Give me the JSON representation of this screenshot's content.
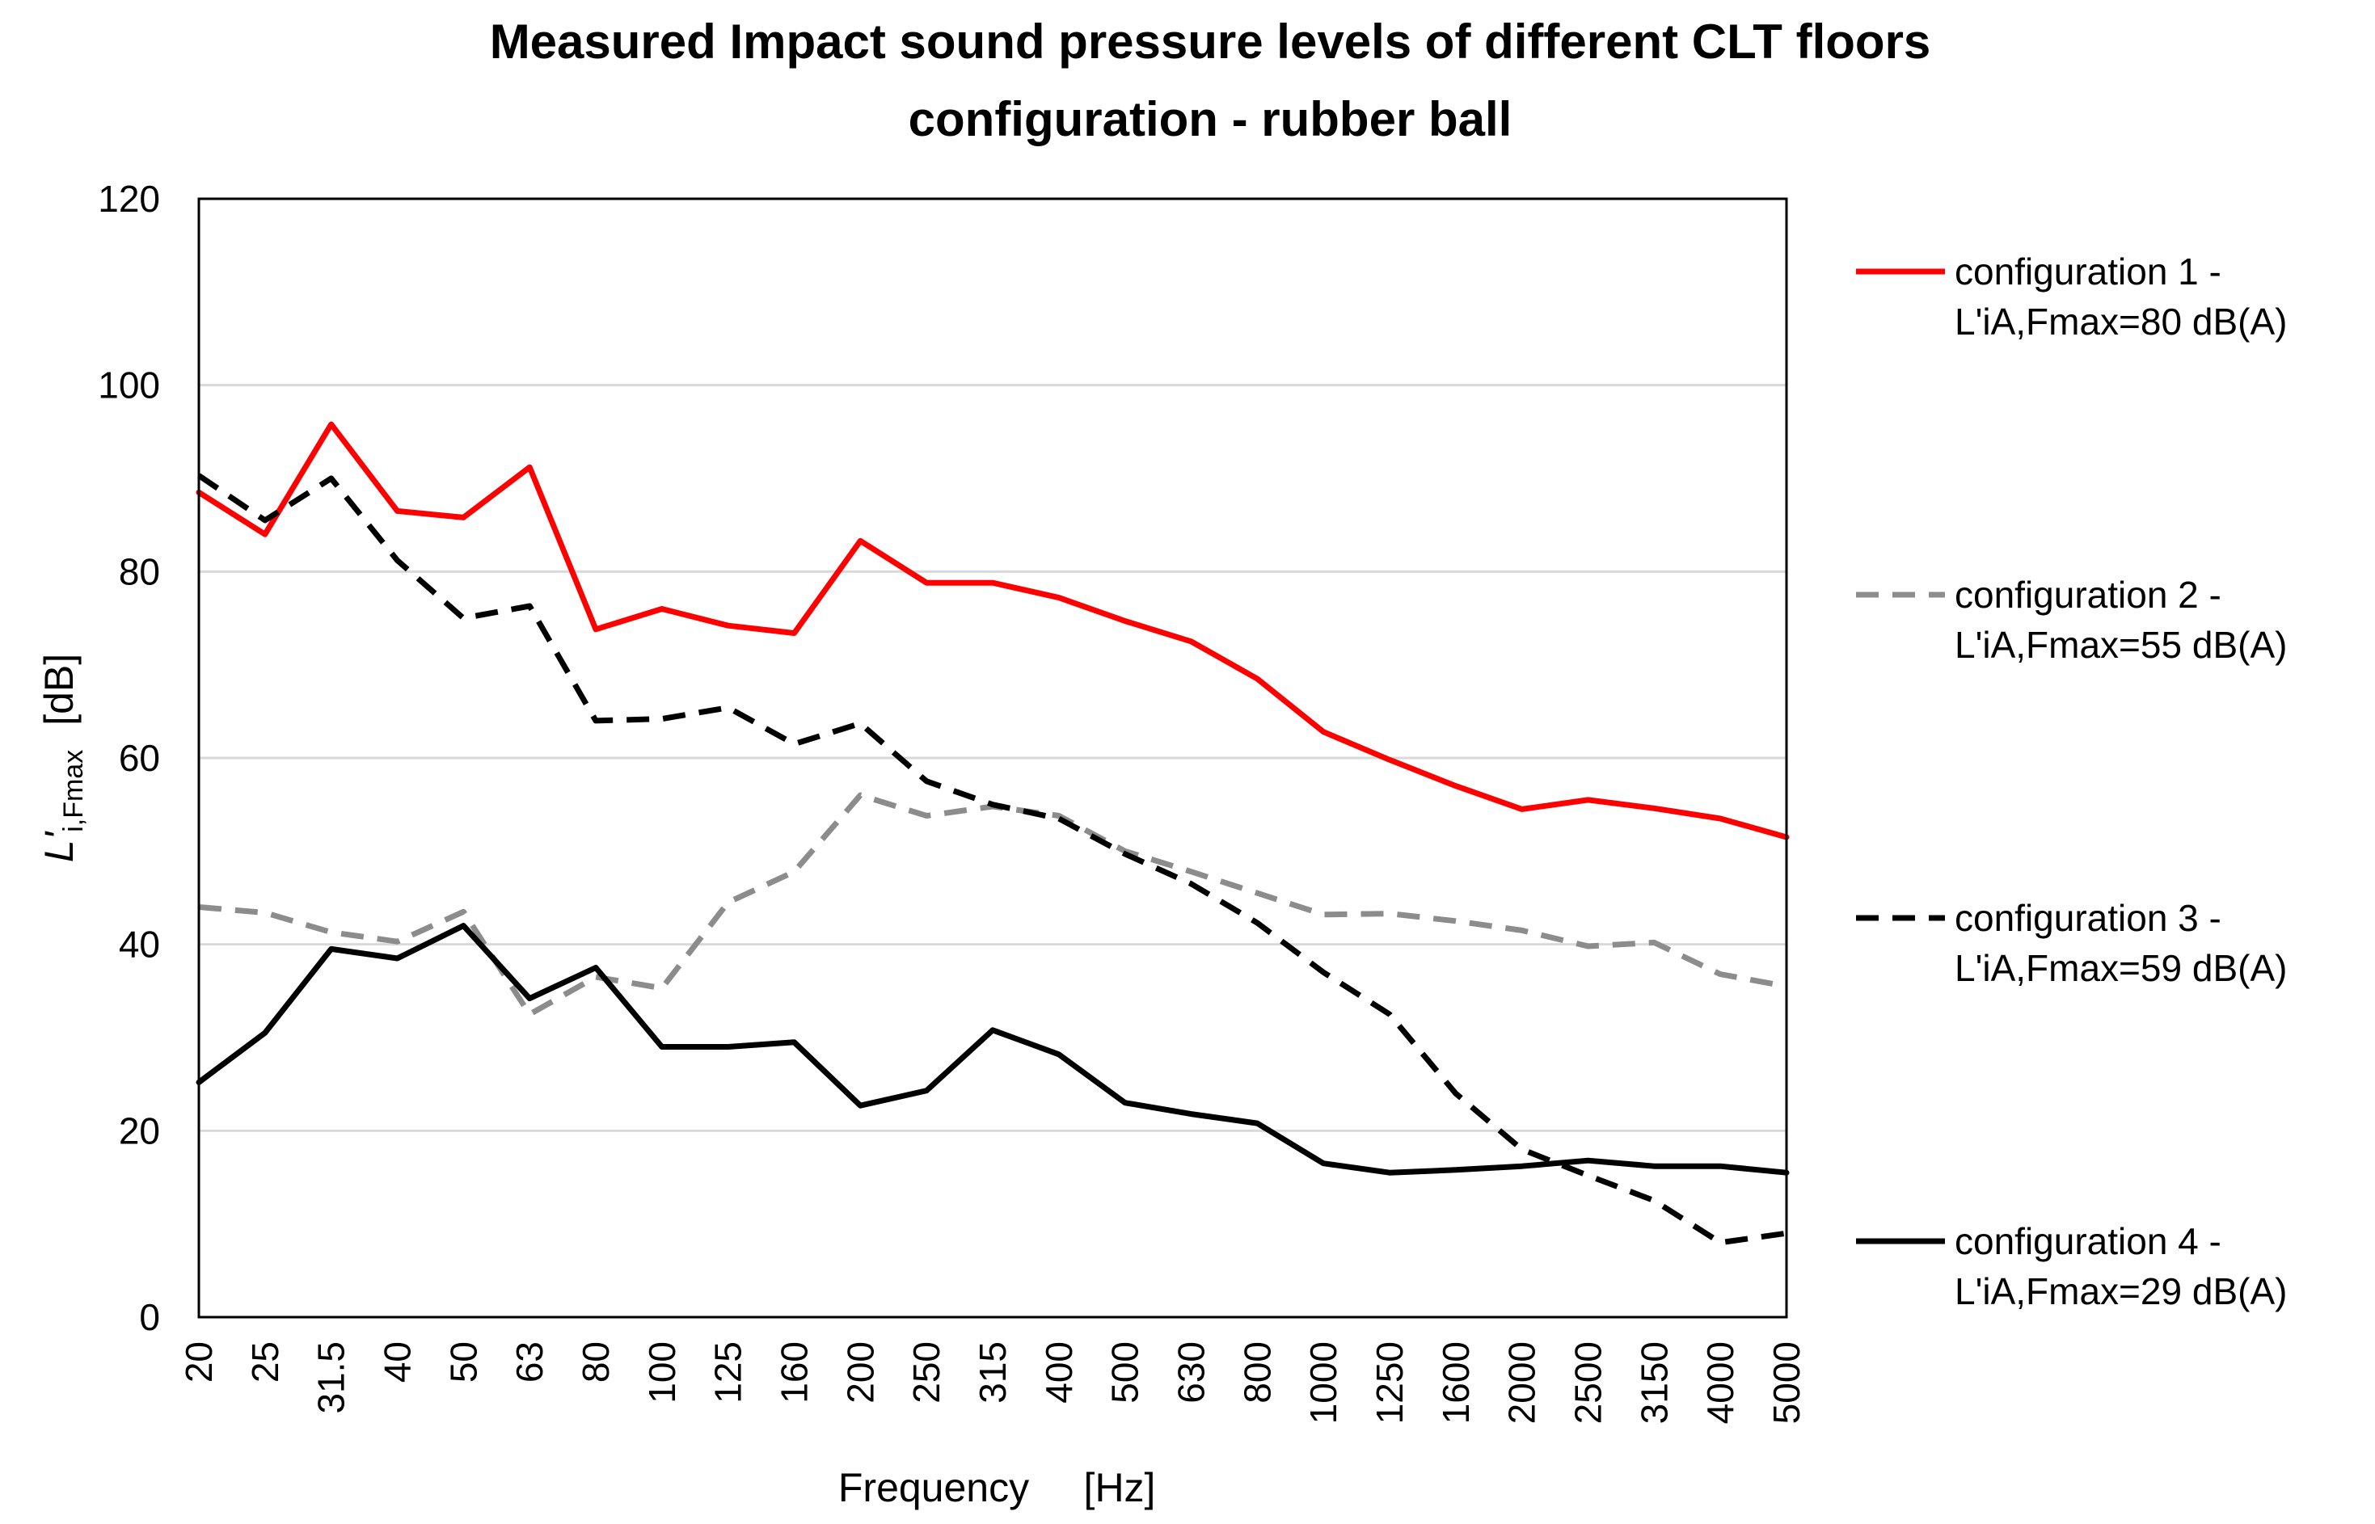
{
  "chart_data": {
    "type": "line",
    "title_lines": [
      "Measured Impact sound pressure levels of different CLT floors",
      "configuration - rubber ball"
    ],
    "xlabel": {
      "main": "Frequency",
      "unit": "[Hz]"
    },
    "ylabel": {
      "symbol": "L'",
      "subscript": "i,Fmax",
      "unit": "[dB]"
    },
    "ylim": [
      0,
      120
    ],
    "yticks": [
      0,
      20,
      40,
      60,
      80,
      100,
      120
    ],
    "grid": true,
    "legend_position": "right",
    "categories": [
      "20",
      "25",
      "31.5",
      "40",
      "50",
      "63",
      "80",
      "100",
      "125",
      "160",
      "200",
      "250",
      "315",
      "400",
      "500",
      "630",
      "800",
      "1000",
      "1250",
      "1600",
      "2000",
      "2500",
      "3150",
      "4000",
      "5000"
    ],
    "series": [
      {
        "name": "configuration 1 -",
        "detail": "L'iA,Fmax=80 dB(A)",
        "color": "#ff0000",
        "style": "solid",
        "values": [
          88.5,
          84,
          95.8,
          86.5,
          85.8,
          91.2,
          73.8,
          76,
          74.2,
          73.4,
          83.3,
          78.8,
          78.8,
          77.2,
          74.7,
          72.5,
          68.5,
          62.8,
          59.8,
          57,
          54.5,
          55.5,
          54.6,
          53.5,
          51.5
        ]
      },
      {
        "name": "configuration 2 -",
        "detail": "L'iA,Fmax=55 dB(A)",
        "color": "#8c8c8c",
        "style": "dashed",
        "values": [
          44,
          43.4,
          41.3,
          40.3,
          43.5,
          32.5,
          36.5,
          35.3,
          44.5,
          47.8,
          56,
          53.8,
          54.8,
          53.8,
          50,
          47.8,
          45.5,
          43.2,
          43.3,
          42.5,
          41.5,
          39.8,
          40.2,
          36.8,
          35.5
        ]
      },
      {
        "name": "configuration 3 -",
        "detail": "L'iA,Fmax=59 dB(A)",
        "color": "#000000",
        "style": "dashed",
        "values": [
          90.3,
          85.5,
          90,
          81.2,
          75,
          76.3,
          64,
          64.2,
          65.4,
          61.5,
          63.7,
          57.5,
          55,
          53.5,
          49.7,
          46.5,
          42.3,
          37,
          32.5,
          24,
          18,
          15.2,
          12.5,
          8,
          9
        ]
      },
      {
        "name": "configuration 4 -",
        "detail": "L'iA,Fmax=29 dB(A)",
        "color": "#000000",
        "style": "solid",
        "values": [
          25.2,
          30.5,
          39.5,
          38.5,
          42,
          34.2,
          37.5,
          29,
          29,
          29.5,
          22.7,
          24.3,
          30.8,
          28.2,
          23,
          21.8,
          20.8,
          16.5,
          15.5,
          15.8,
          16.2,
          16.8,
          16.2,
          16.2,
          15.5
        ]
      }
    ]
  }
}
